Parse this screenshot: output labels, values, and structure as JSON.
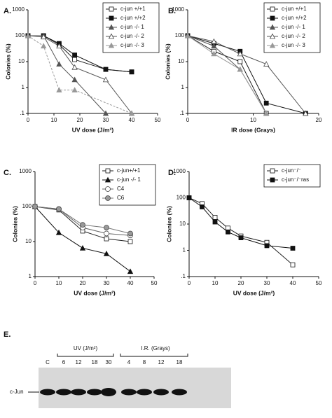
{
  "chart_data": [
    {
      "type": "line",
      "label": "A.",
      "x_label": "UV dose (J/m²)",
      "y_label": "Colonies (%)",
      "log_y": true,
      "legend": "upper right",
      "xlim": [
        0,
        50
      ],
      "xticks": [
        0,
        10,
        20,
        30,
        40,
        50
      ],
      "ylim": [
        0.1,
        1000
      ],
      "yticks": [
        1000,
        100,
        10,
        1,
        {
          "value": 0.1,
          "label": ".1"
        }
      ],
      "series": [
        {
          "name": "c-jun +/+1",
          "marker": "square-open",
          "color": "#222",
          "x": [
            0,
            6,
            12,
            18,
            30,
            40
          ],
          "values": [
            100,
            100,
            45,
            12,
            5,
            4
          ]
        },
        {
          "name": "c-jun +/+2",
          "marker": "square-filled",
          "color": "#111",
          "x": [
            0,
            6,
            12,
            18,
            30,
            40
          ],
          "values": [
            100,
            100,
            50,
            18,
            5,
            4
          ]
        },
        {
          "name": "c-jun -/- 1",
          "marker": "triangle-filled",
          "color": "#555",
          "x": [
            0,
            6,
            12,
            18,
            30
          ],
          "values": [
            100,
            100,
            8,
            2,
            0.1
          ]
        },
        {
          "name": "c-jun -/- 2",
          "marker": "triangle-open",
          "color": "#555",
          "x": [
            0,
            6,
            12,
            18,
            30,
            40
          ],
          "values": [
            100,
            90,
            40,
            6,
            2,
            0.1
          ]
        },
        {
          "name": "c-jun -/- 3",
          "marker": "triangle-gray",
          "color": "#999",
          "dashed": true,
          "x": [
            0,
            6,
            12,
            18,
            40
          ],
          "values": [
            100,
            40,
            0.8,
            0.8,
            0.1
          ]
        }
      ]
    },
    {
      "type": "line",
      "label": "B.",
      "x_label": "IR dose (Grays)",
      "y_label": "Colonies (%)",
      "log_y": true,
      "legend": "upper right",
      "xlim": [
        0,
        20
      ],
      "xticks": [
        0,
        10,
        20
      ],
      "ylim": [
        0.1,
        1000
      ],
      "yticks": [
        1000,
        100,
        10,
        1,
        {
          "value": 0.1,
          "label": ".1"
        }
      ],
      "series": [
        {
          "name": "c-jun +/+1",
          "marker": "square-open",
          "color": "#222",
          "x": [
            0,
            4,
            8,
            12,
            18
          ],
          "values": [
            100,
            25,
            10,
            0.1,
            0.1
          ]
        },
        {
          "name": "c-jun +/+2",
          "marker": "square-filled",
          "color": "#111",
          "x": [
            0,
            4,
            8,
            12,
            18
          ],
          "values": [
            100,
            50,
            25,
            0.25,
            0.1
          ]
        },
        {
          "name": "c-jun -/- 1",
          "marker": "triangle-filled",
          "color": "#555",
          "x": [
            0,
            4,
            8,
            12
          ],
          "values": [
            100,
            40,
            5,
            0.1
          ]
        },
        {
          "name": "c-jun -/- 2",
          "marker": "triangle-open",
          "color": "#555",
          "x": [
            0,
            4,
            8,
            12,
            18
          ],
          "values": [
            100,
            60,
            20,
            8,
            0.1
          ]
        },
        {
          "name": "c-jun -/- 3",
          "marker": "triangle-gray",
          "color": "#999",
          "x": [
            0,
            4,
            8,
            12
          ],
          "values": [
            100,
            20,
            5,
            0.1
          ]
        }
      ]
    },
    {
      "type": "line",
      "label": "C.",
      "x_label": "UV dose (J/m²)",
      "y_label": "Colonies (%)",
      "log_y": true,
      "legend": "upper right",
      "xlim": [
        0,
        50
      ],
      "xticks": [
        0,
        10,
        20,
        30,
        40,
        50
      ],
      "ylim": [
        1,
        1000
      ],
      "yticks": [
        1000,
        100,
        10,
        1
      ],
      "series": [
        {
          "name": "c-jun+/+1",
          "marker": "square-open",
          "color": "#222",
          "x": [
            0,
            10,
            20,
            30,
            40
          ],
          "values": [
            100,
            80,
            20,
            12,
            10
          ]
        },
        {
          "name": "c-jun -/- 1",
          "marker": "triangle-filled",
          "color": "#111",
          "x": [
            0,
            10,
            20,
            30,
            40
          ],
          "values": [
            100,
            18,
            6.5,
            4.5,
            1.4
          ]
        },
        {
          "name": "C4",
          "marker": "circle-open",
          "color": "#666",
          "x": [
            0,
            10,
            20,
            30,
            40
          ],
          "values": [
            100,
            85,
            25,
            17,
            15
          ]
        },
        {
          "name": "C6",
          "marker": "circle-gray",
          "color": "#777",
          "x": [
            0,
            10,
            20,
            30,
            40
          ],
          "values": [
            100,
            85,
            30,
            25,
            17
          ]
        }
      ]
    },
    {
      "type": "line",
      "label": "D.",
      "x_label": "UV dose (J/m²)",
      "y_label": "Colonies (%)",
      "log_y": true,
      "legend": "upper right",
      "xlim": [
        0,
        50
      ],
      "xticks": [
        0,
        10,
        20,
        30,
        40,
        50
      ],
      "ylim": [
        0.1,
        1000
      ],
      "yticks": [
        1000,
        100,
        10,
        1,
        {
          "value": 0.1,
          "label": ".1"
        }
      ],
      "series": [
        {
          "name": "c-jun⁻/⁻",
          "marker": "square-open",
          "color": "#222",
          "x": [
            0,
            5,
            10,
            15,
            20,
            30,
            40
          ],
          "values": [
            100,
            60,
            18,
            7,
            3.5,
            2,
            0.28
          ]
        },
        {
          "name": "c-jun⁻/⁻ras",
          "marker": "square-filled",
          "color": "#111",
          "x": [
            0,
            5,
            10,
            15,
            20,
            30,
            40
          ],
          "values": [
            100,
            45,
            12,
            5,
            3,
            1.5,
            1.2
          ]
        }
      ]
    }
  ],
  "blot": {
    "label": "E.",
    "control": "C",
    "uv_header": "UV (J/m²)",
    "uv_lanes": [
      "6",
      "12",
      "18",
      "30"
    ],
    "ir_header": "I.R. (Grays)",
    "ir_lanes": [
      "4",
      "8",
      "12",
      "18"
    ],
    "band_label": "c-Jun"
  }
}
